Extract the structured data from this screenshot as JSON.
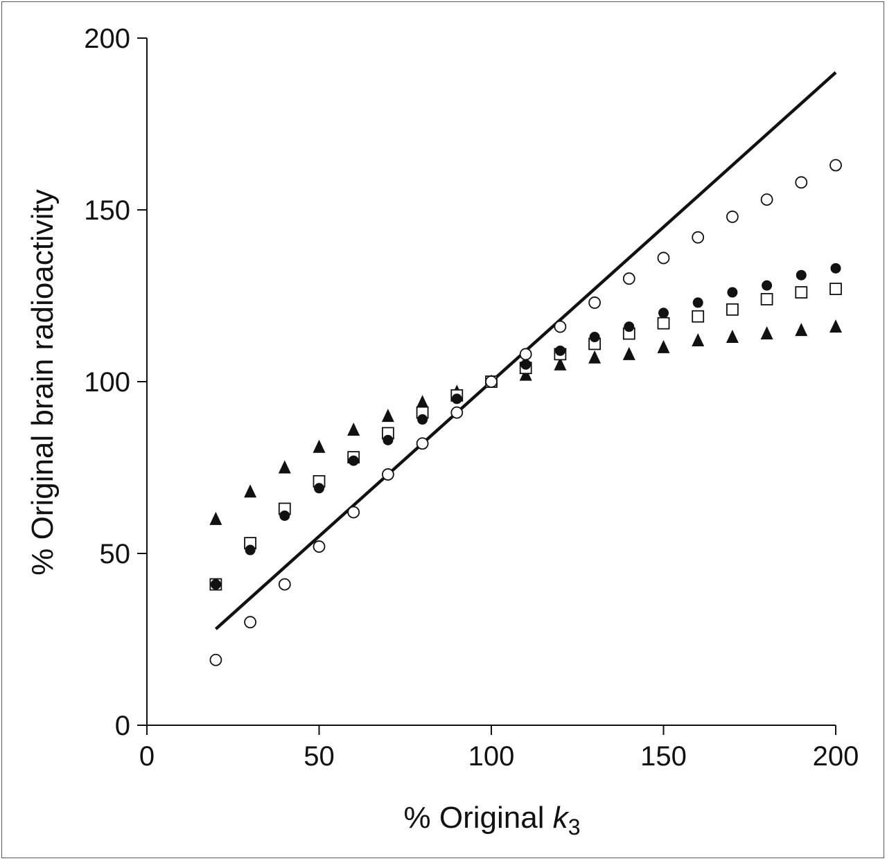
{
  "chart_data": {
    "type": "scatter",
    "xlabel": "% Original ",
    "xlabel_var": "k",
    "xlabel_sub": "3",
    "ylabel": "% Original brain radioactivity",
    "xlim": [
      0,
      200
    ],
    "ylim": [
      0,
      200
    ],
    "xticks": [
      0,
      50,
      100,
      150,
      200
    ],
    "yticks": [
      0,
      50,
      100,
      150,
      200
    ],
    "grid": false,
    "line": {
      "name": "",
      "x": [
        20,
        200
      ],
      "y": [
        28,
        190
      ],
      "color": "#111111"
    },
    "series": [
      {
        "marker": "open-circle",
        "x": [
          20,
          30,
          40,
          50,
          60,
          70,
          80,
          90,
          100,
          110,
          120,
          130,
          140,
          150,
          160,
          170,
          180,
          190,
          200
        ],
        "y": [
          19,
          30,
          41,
          52,
          62,
          73,
          82,
          91,
          100,
          108,
          116,
          123,
          130,
          136,
          142,
          148,
          153,
          158,
          163
        ]
      },
      {
        "marker": "filled-circle",
        "x": [
          20,
          30,
          40,
          50,
          60,
          70,
          80,
          90,
          100,
          110,
          120,
          130,
          140,
          150,
          160,
          170,
          180,
          190,
          200
        ],
        "y": [
          41,
          51,
          61,
          69,
          77,
          83,
          89,
          95,
          100,
          105,
          109,
          113,
          116,
          120,
          123,
          126,
          128,
          131,
          133
        ]
      },
      {
        "marker": "open-square",
        "x": [
          20,
          30,
          40,
          50,
          60,
          70,
          80,
          90,
          100,
          110,
          120,
          130,
          140,
          150,
          160,
          170,
          180,
          190,
          200
        ],
        "y": [
          41,
          53,
          63,
          71,
          78,
          85,
          91,
          96,
          100,
          104,
          108,
          111,
          114,
          117,
          119,
          121,
          124,
          126,
          127
        ]
      },
      {
        "marker": "filled-triangle",
        "x": [
          20,
          30,
          40,
          50,
          60,
          70,
          80,
          90,
          100,
          110,
          120,
          130,
          140,
          150,
          160,
          170,
          180,
          190,
          200
        ],
        "y": [
          60,
          68,
          75,
          81,
          86,
          90,
          94,
          97,
          100,
          102,
          105,
          107,
          108,
          110,
          112,
          113,
          114,
          115,
          116
        ]
      }
    ]
  }
}
